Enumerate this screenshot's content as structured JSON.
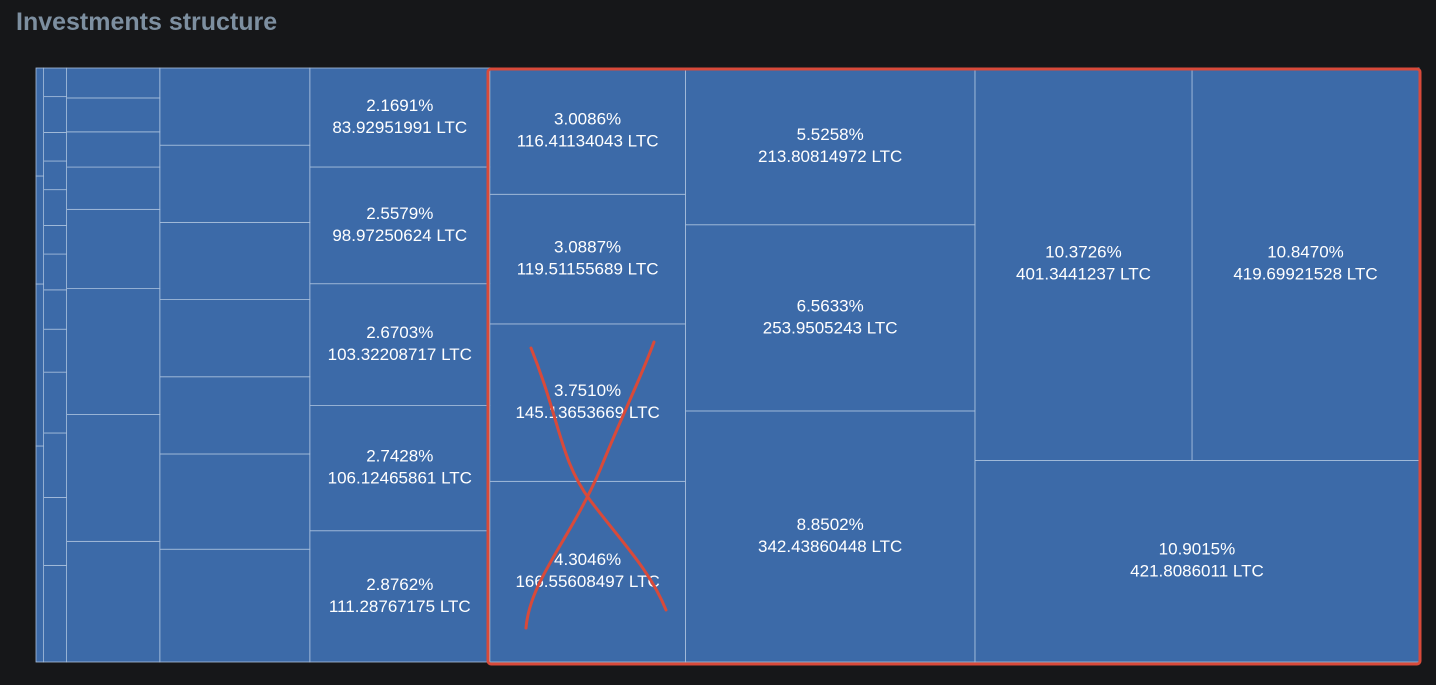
{
  "chart_data": {
    "type": "treemap",
    "title": "Investments structure",
    "color": "#3c6aa8",
    "values": [
      10.9015,
      10.847,
      10.3726,
      8.8502,
      6.5633,
      5.5258,
      4.3046,
      3.751,
      3.0887,
      3.0086,
      2.8762,
      2.7428,
      2.6703,
      2.5579,
      2.1691,
      2.06,
      1.74,
      1.41,
      1.41,
      1.41,
      1.41,
      1.41,
      1.37,
      1.44,
      1.43,
      0.9,
      0.48,
      0.4,
      0.385,
      0.34,
      0.27,
      0.19,
      0.18,
      0.17,
      0.12,
      0.11,
      0.1,
      0.08,
      0.1,
      0.08,
      0.08,
      0.1,
      0.08,
      0.2,
      0.15,
      0.1,
      0.1
    ],
    "value_labels": [
      "10.9015%",
      "10.8470%",
      "10.3726%",
      "8.8502%",
      "6.5633%",
      "5.5258%",
      "4.3046%",
      "3.7510%",
      "3.0887%",
      "3.0086%",
      "2.8762%",
      "2.7428%",
      "2.6703%",
      "2.5579%",
      "2.1691%",
      null,
      null,
      null,
      null,
      null,
      null,
      null,
      null,
      null,
      null,
      null,
      null,
      null,
      null,
      null,
      null,
      null,
      null,
      null,
      null,
      null,
      null,
      null,
      null,
      null,
      null,
      null,
      null,
      null,
      null,
      null,
      null
    ],
    "amounts": [
      421.8086011,
      419.69921528,
      401.3441237,
      342.43860448,
      253.9505243,
      213.80814972,
      166.55608497,
      145.13653669,
      119.51155689,
      116.41134043,
      111.28767175,
      106.12465861,
      103.32208717,
      98.97250624,
      83.92951991,
      null,
      null,
      null,
      null,
      null,
      null,
      null,
      null,
      null,
      null,
      null,
      null,
      null,
      null,
      null,
      null,
      null,
      null,
      null,
      null,
      null,
      null,
      null,
      null,
      null,
      null,
      null,
      null,
      null,
      null,
      null,
      null
    ],
    "amount_labels": [
      "421.8086011 LTC",
      "419.69921528 LTC",
      "401.3441237 LTC",
      "342.43860448 LTC",
      "253.9505243 LTC",
      "213.80814972 LTC",
      "166.55608497 LTC",
      "145.13653669 LTC",
      "119.51155689 LTC",
      "116.41134043 LTC",
      "111.28767175 LTC",
      "106.12465861 LTC",
      "103.32208717 LTC",
      "98.97250624 LTC",
      "83.92951991 LTC",
      null,
      null,
      null,
      null,
      null,
      null,
      null,
      null,
      null,
      null,
      null,
      null,
      null,
      null,
      null,
      null,
      null,
      null,
      null,
      null,
      null,
      null,
      null,
      null,
      null,
      null,
      null,
      null,
      null,
      null,
      null,
      null
    ]
  }
}
